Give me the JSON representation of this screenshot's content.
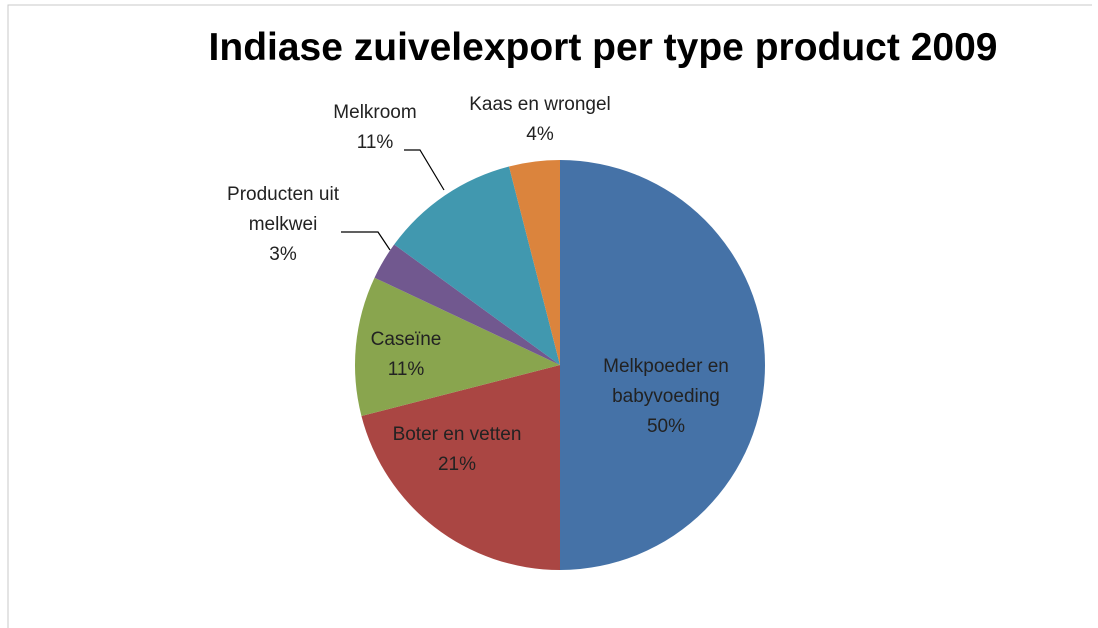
{
  "chart_data": {
    "type": "pie",
    "title": "Indiase zuivelexport per type product 2009",
    "categories": [
      "Melkpoeder en babyvoeding",
      "Boter en vetten",
      "Caseïne",
      "Producten uit melkwei",
      "Melkroom",
      "Kaas en wrongel"
    ],
    "values": [
      50,
      21,
      11,
      3,
      11,
      4
    ],
    "value_labels": [
      "50%",
      "21%",
      "11%",
      "3%",
      "11%",
      "4%"
    ],
    "colors": [
      "#4572a7",
      "#aa4643",
      "#89a54e",
      "#71588f",
      "#4198af",
      "#db843d"
    ]
  }
}
